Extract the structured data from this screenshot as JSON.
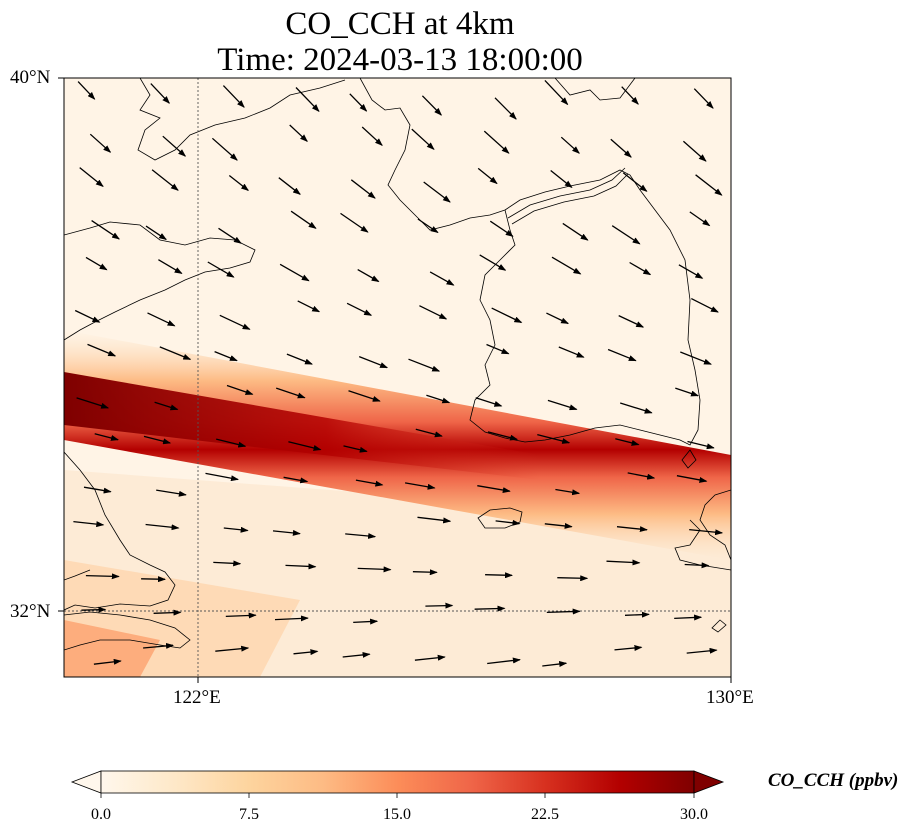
{
  "title": {
    "line1": "CO_CCH at 4km",
    "line2": "Time: 2024-03-13 18:00:00"
  },
  "map": {
    "variable": "CO_CCH",
    "level": "4km",
    "time": "2024-03-13 18:00:00",
    "lat_range": [
      31.2,
      40.0
    ],
    "lon_range": [
      120.0,
      130.0
    ],
    "lat_ticks": [
      "40°N",
      "32°N"
    ],
    "lon_ticks": [
      "122°E",
      "130°E"
    ],
    "gridlines": "dotted at 122°E and 32°N",
    "overlay": "wind vectors (black arrows)",
    "plume_description": "CO band from west (~34.5°N, 120°E) extending east-southeast to ~33°N, 130°E"
  },
  "colorbar": {
    "label": "CO_CCH (ppbv)",
    "cmap": "OrRd",
    "min": 0.0,
    "max": 30.0,
    "extend": "both",
    "tick_labels": [
      "0.0",
      "7.5",
      "15.0",
      "22.5",
      "30.0"
    ],
    "colors": [
      "#fff7ec",
      "#fee8c8",
      "#fdd49e",
      "#fdbb84",
      "#fc8d59",
      "#ef6548",
      "#d7301f",
      "#b30000",
      "#7f0000"
    ]
  }
}
